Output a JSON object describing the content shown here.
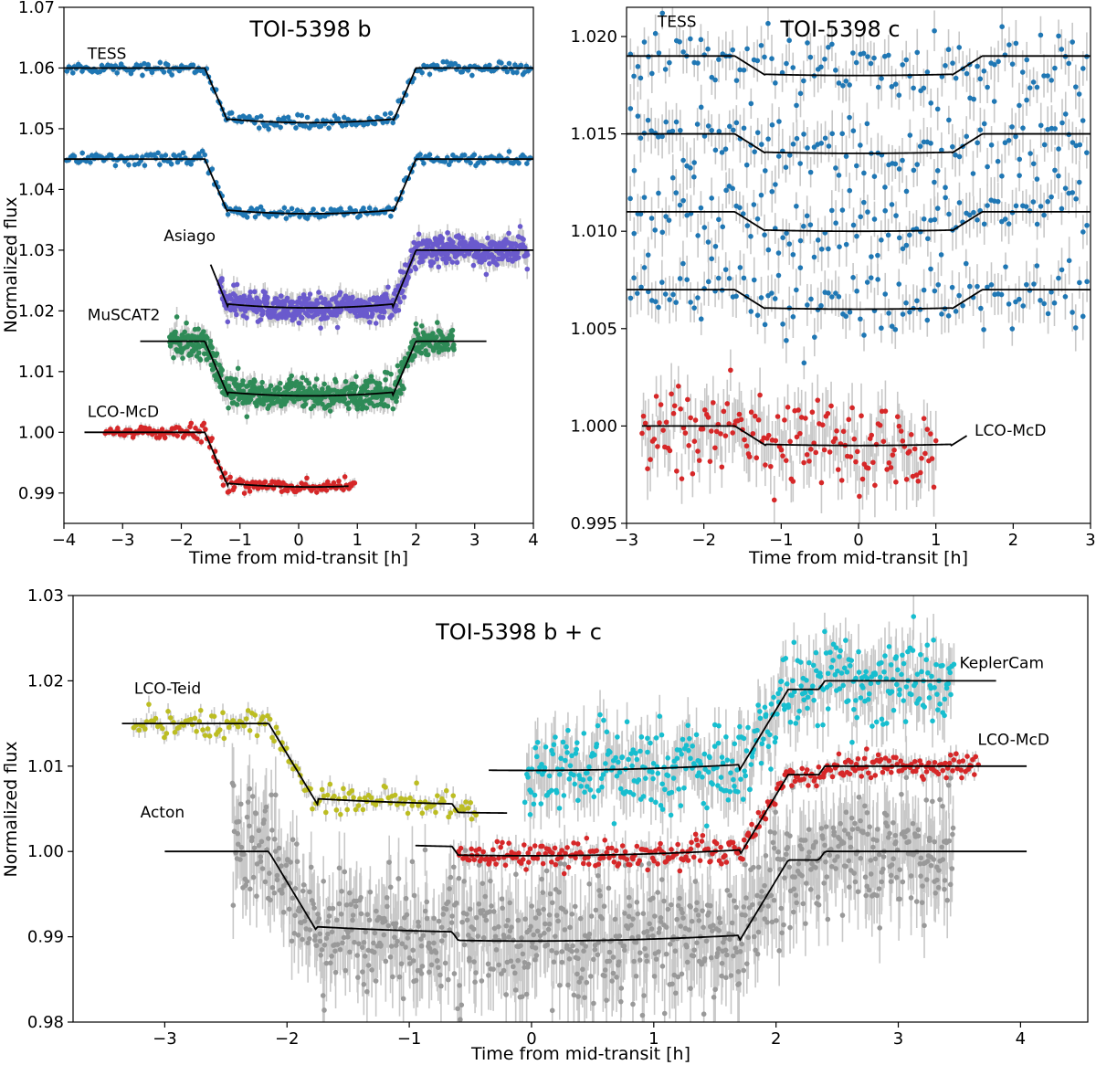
{
  "chart_data": [
    {
      "id": "b",
      "type": "scatter",
      "title": "TOI-5398 b",
      "xlabel": "Time from mid-transit [h]",
      "ylabel": "Normalized flux",
      "xlim": [
        -4,
        4
      ],
      "ylim": [
        0.985,
        1.07
      ],
      "xticks": [
        -4,
        -3,
        -2,
        -1,
        0,
        1,
        2,
        3,
        4
      ],
      "xtick_labels": [
        "−4",
        "−3",
        "−2",
        "−1",
        "0",
        "1",
        "2",
        "3",
        "4"
      ],
      "yticks": [
        0.99,
        1.0,
        1.01,
        1.02,
        1.03,
        1.04,
        1.05,
        1.06,
        1.07
      ],
      "ytick_labels": [
        "0.99",
        "1.00",
        "1.01",
        "1.02",
        "1.03",
        "1.04",
        "1.05",
        "1.06",
        "1.07"
      ],
      "series": [
        {
          "name": "TESS",
          "color": "#1f77b4",
          "label_x": -3.6,
          "label_y": 1.0615,
          "t0": -3.95,
          "t1": 3.95,
          "n": 240,
          "base": 1.06,
          "depth": 0.009,
          "t1c": -1.6,
          "t2c": 1.6,
          "t4c": 2.0,
          "scatter": 0.0005,
          "model_x": [
            -4.0,
            4.0
          ]
        },
        {
          "name": "TESS",
          "color": "#1f77b4",
          "label_x": null,
          "label_y": null,
          "t0": -3.95,
          "t1": 3.95,
          "n": 240,
          "base": 1.045,
          "depth": 0.009,
          "t1c": -1.6,
          "t2c": 1.6,
          "t4c": 2.0,
          "scatter": 0.0005,
          "model_x": [
            -4.0,
            4.0
          ]
        },
        {
          "name": "Asiago",
          "color": "#6a5acd",
          "label_x": -2.3,
          "label_y": 1.0315,
          "t0": -1.35,
          "t1": 3.9,
          "n": 700,
          "base": 1.03,
          "depth": 0.0095,
          "t1c": -1.6,
          "t2c": 1.6,
          "t4c": 2.0,
          "scatter": 0.0012,
          "model_x": [
            -1.5,
            4.0
          ]
        },
        {
          "name": "MuSCAT2",
          "color": "#2e8b57",
          "label_x": -3.6,
          "label_y": 1.0185,
          "t0": -2.2,
          "t1": 2.65,
          "n": 700,
          "base": 1.015,
          "depth": 0.009,
          "t1c": -1.6,
          "t2c": 1.6,
          "t4c": 2.0,
          "scatter": 0.0012,
          "model_x": [
            -2.7,
            3.2
          ]
        },
        {
          "name": "LCO-McD",
          "color": "#d62728",
          "label_x": -3.6,
          "label_y": 1.0025,
          "t0": -3.3,
          "t1": 0.95,
          "n": 180,
          "base": 1.0,
          "depth": 0.009,
          "t1c": -1.6,
          "t2c": 1.6,
          "t4c": 2.0,
          "scatter": 0.0006,
          "model_x": [
            -3.65,
            0.85
          ]
        }
      ]
    },
    {
      "id": "c",
      "type": "scatter",
      "title": "TOI-5398 c",
      "xlabel": "Time from mid-transit [h]",
      "ylabel": "",
      "xlim": [
        -3,
        3
      ],
      "ylim": [
        0.995,
        1.0215
      ],
      "xticks": [
        -3,
        -2,
        -1,
        0,
        1,
        2,
        3
      ],
      "xtick_labels": [
        "−3",
        "−2",
        "−1",
        "0",
        "1",
        "2",
        "3"
      ],
      "yticks": [
        0.995,
        1.0,
        1.005,
        1.01,
        1.015,
        1.02
      ],
      "ytick_labels": [
        "0.995",
        "1.000",
        "1.005",
        "1.010",
        "1.015",
        "1.020"
      ],
      "series": [
        {
          "name": "TESS",
          "color": "#1f77b4",
          "label_x": -2.6,
          "label_y": 1.0205,
          "t0": -2.95,
          "t1": 2.95,
          "n": 130,
          "base": 1.019,
          "depth": 0.001,
          "t1c": -1.6,
          "t2c": 1.5,
          "t4c": 1.6,
          "scatter": 0.0009,
          "model_x": [
            -3.0,
            3.0
          ]
        },
        {
          "name": "TESS",
          "color": "#1f77b4",
          "label_x": null,
          "label_y": null,
          "t0": -2.95,
          "t1": 2.95,
          "n": 130,
          "base": 1.015,
          "depth": 0.001,
          "t1c": -1.6,
          "t2c": 1.5,
          "t4c": 1.6,
          "scatter": 0.0009,
          "model_x": [
            -3.0,
            3.0
          ]
        },
        {
          "name": "TESS",
          "color": "#1f77b4",
          "label_x": null,
          "label_y": null,
          "t0": -2.95,
          "t1": 2.95,
          "n": 130,
          "base": 1.011,
          "depth": 0.001,
          "t1c": -1.6,
          "t2c": 1.5,
          "t4c": 1.6,
          "scatter": 0.0009,
          "model_x": [
            -3.0,
            3.0
          ]
        },
        {
          "name": "TESS",
          "color": "#1f77b4",
          "label_x": null,
          "label_y": null,
          "t0": -2.95,
          "t1": 2.95,
          "n": 130,
          "base": 1.007,
          "depth": 0.001,
          "t1c": -1.6,
          "t2c": 1.5,
          "t4c": 1.6,
          "scatter": 0.0009,
          "model_x": [
            -3.0,
            3.0
          ]
        },
        {
          "name": "LCO-McD",
          "color": "#d62728",
          "label_x": 1.5,
          "label_y": 0.9995,
          "t0": -2.8,
          "t1": 1.0,
          "n": 170,
          "base": 1.0,
          "depth": 0.001,
          "t1c": -1.6,
          "t2c": 1.5,
          "t4c": 1.6,
          "scatter": 0.0012,
          "model_x": [
            -2.8,
            1.4
          ]
        }
      ]
    },
    {
      "id": "bc",
      "type": "scatter",
      "title": "TOI-5398 b + c",
      "xlabel": "Time from mid-transit [h]",
      "ylabel": "Normalized flux",
      "xlim": [
        -3.75,
        4.55
      ],
      "ylim": [
        0.98,
        1.03
      ],
      "xticks": [
        -3,
        -2,
        -1,
        0,
        1,
        2,
        3,
        4
      ],
      "xtick_labels": [
        "−3",
        "−2",
        "−1",
        "0",
        "1",
        "2",
        "3",
        "4"
      ],
      "yticks": [
        0.98,
        0.99,
        1.0,
        1.01,
        1.02,
        1.03
      ],
      "ytick_labels": [
        "0.98",
        "0.99",
        "1.00",
        "1.01",
        "1.02",
        "1.03"
      ],
      "series": [
        {
          "name": "Acton",
          "color": "#999999",
          "label_x": -3.2,
          "label_y": 1.004,
          "t0": -2.45,
          "t1": 3.45,
          "n": 900,
          "base": 1.0,
          "depth": 0.0095,
          "t1c": -2.15,
          "t2c": 1.75,
          "t4c": 2.1,
          "cdepth": 0.001,
          "c1": -0.65,
          "c2": 2.4,
          "scatter": 0.0035,
          "model_x": [
            -3.0,
            4.05
          ]
        },
        {
          "name": "LCO-Teid",
          "color": "#bcbd22",
          "label_x": -3.25,
          "label_y": 1.0185,
          "t0": -3.25,
          "t1": -0.45,
          "n": 160,
          "base": 1.015,
          "depth": 0.0095,
          "t1c": -2.15,
          "t2c": 1.75,
          "t4c": 2.1,
          "cdepth": 0.001,
          "c1": -0.65,
          "c2": 2.4,
          "scatter": 0.0008,
          "model_x": [
            -3.35,
            -0.2
          ]
        },
        {
          "name": "KeplerCam",
          "color": "#17becf",
          "label_x": 3.5,
          "label_y": 1.0215,
          "t0": -0.05,
          "t1": 3.45,
          "n": 420,
          "base": 1.02,
          "depth": 0.0095,
          "t1c": -2.15,
          "t2c": 1.75,
          "t4c": 2.1,
          "cdepth": 0.001,
          "c1": -0.65,
          "c2": 2.4,
          "scatter": 0.0024,
          "model_x": [
            -0.35,
            3.8
          ]
        },
        {
          "name": "LCO-McD",
          "color": "#d62728",
          "label_x": 3.65,
          "label_y": 1.0125,
          "t0": -0.6,
          "t1": 3.65,
          "n": 330,
          "base": 1.01,
          "depth": 0.0095,
          "t1c": -2.15,
          "t2c": 1.75,
          "t4c": 2.1,
          "cdepth": 0.001,
          "c1": -0.65,
          "c2": 2.4,
          "scatter": 0.0008,
          "model_x": [
            -0.95,
            4.05
          ]
        }
      ]
    }
  ]
}
